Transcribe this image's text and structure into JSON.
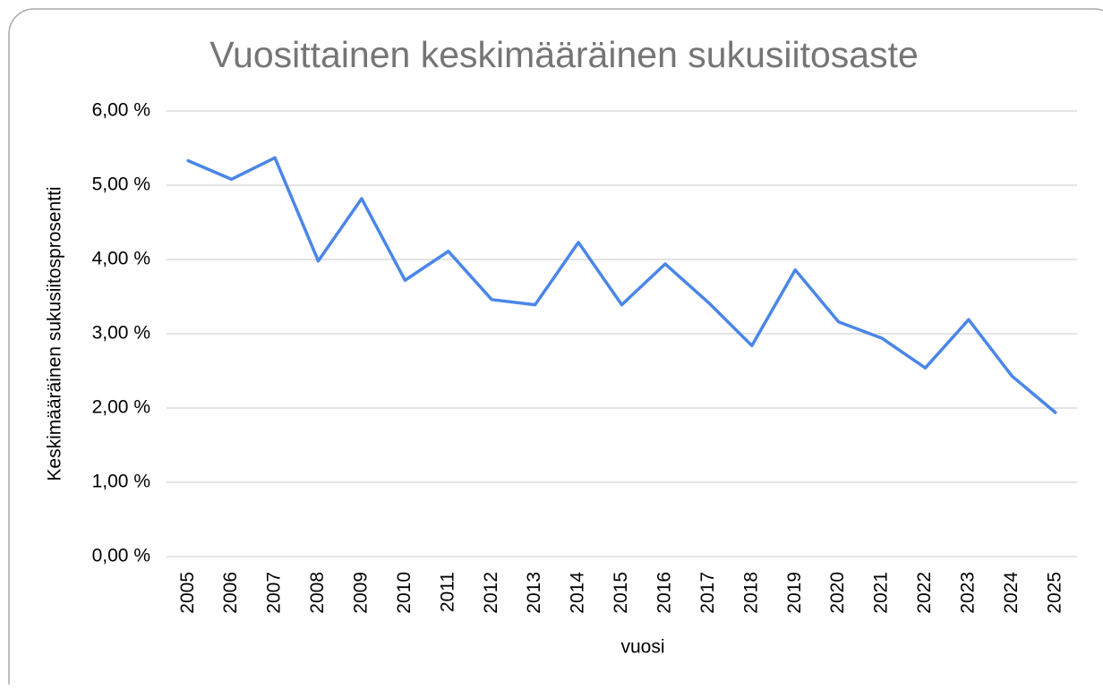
{
  "chart_data": {
    "type": "line",
    "title": "Vuosittainen keskimääräinen sukusiitosaste",
    "x_label": "vuosi",
    "y_label": "Keskimääräinen sukusiitosprosentti",
    "categories": [
      "2005",
      "2006",
      "2007",
      "2008",
      "2009",
      "2010",
      "2011",
      "2012",
      "2013",
      "2014",
      "2015",
      "2016",
      "2017",
      "2018",
      "2019",
      "2020",
      "2021",
      "2022",
      "2023",
      "2024",
      "2025"
    ],
    "values": [
      5.33,
      5.08,
      5.37,
      3.98,
      4.82,
      3.72,
      4.11,
      3.46,
      3.39,
      4.23,
      3.39,
      3.94,
      3.42,
      2.84,
      3.86,
      3.16,
      2.94,
      2.54,
      3.19,
      2.43,
      1.94
    ],
    "color": "#4a86e8",
    "ylim": [
      0,
      6
    ],
    "yticks": [
      {
        "value": 0,
        "label": "0,00 %"
      },
      {
        "value": 1,
        "label": "1,00 %"
      },
      {
        "value": 2,
        "label": "2,00 %"
      },
      {
        "value": 3,
        "label": "3,00 %"
      },
      {
        "value": 4,
        "label": "4,00 %"
      },
      {
        "value": 5,
        "label": "5,00 %"
      },
      {
        "value": 6,
        "label": "6,00 %"
      }
    ],
    "grid": true
  }
}
